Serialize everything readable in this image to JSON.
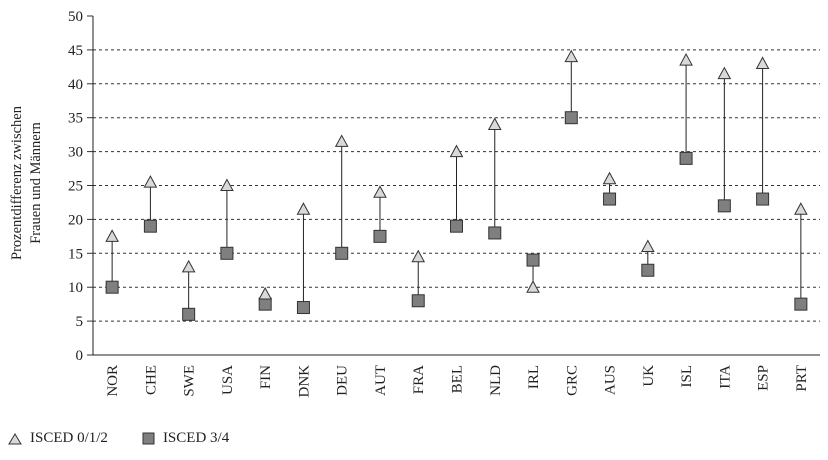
{
  "chart_data": {
    "type": "scatter",
    "ylabel_line1": "Prozentdifferenz zwischen",
    "ylabel_line2": "Frauen und Männern",
    "xlabel": "",
    "ylim": [
      0,
      50
    ],
    "yticks": [
      0,
      5,
      10,
      15,
      20,
      25,
      30,
      35,
      40,
      45,
      50
    ],
    "grid": "horizontal dashed",
    "legend_position": "bottom-left",
    "categories": [
      "NOR",
      "CHE",
      "SWE",
      "USA",
      "FIN",
      "DNK",
      "DEU",
      "AUT",
      "FRA",
      "BEL",
      "NLD",
      "IRL",
      "GRC",
      "AUS",
      "UK",
      "ISL",
      "ITA",
      "ESP",
      "PRT"
    ],
    "series": [
      {
        "name": "ISCED 0/1/2",
        "marker": "triangle",
        "color": "#d9d9d9",
        "values": [
          17.5,
          25.5,
          13,
          25,
          9,
          21.5,
          31.5,
          24,
          14.5,
          30,
          34,
          10,
          44,
          26,
          16,
          43.5,
          41.5,
          43,
          21.5
        ]
      },
      {
        "name": "ISCED 3/4",
        "marker": "square",
        "color": "#7f7f7f",
        "values": [
          10,
          19,
          6,
          15,
          7.5,
          7,
          15,
          17.5,
          8,
          19,
          18,
          14,
          35,
          23,
          12.5,
          29,
          22,
          23,
          7.5
        ]
      }
    ]
  }
}
